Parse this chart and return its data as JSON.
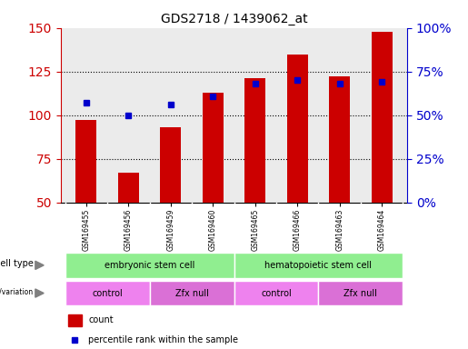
{
  "title": "GDS2718 / 1439062_at",
  "samples": [
    "GSM169455",
    "GSM169456",
    "GSM169459",
    "GSM169460",
    "GSM169465",
    "GSM169466",
    "GSM169463",
    "GSM169464"
  ],
  "counts": [
    97,
    67,
    93,
    113,
    121,
    135,
    122,
    148
  ],
  "percentile_ranks": [
    57,
    50,
    56,
    61,
    68,
    70,
    68,
    69
  ],
  "ylim_left": [
    50,
    150
  ],
  "ylim_right": [
    0,
    100
  ],
  "yticks_left": [
    50,
    75,
    100,
    125,
    150
  ],
  "yticks_right": [
    0,
    25,
    50,
    75,
    100
  ],
  "bar_color": "#cc0000",
  "dot_color": "#0000cc",
  "grid_color": "#000000",
  "cell_type_groups": [
    {
      "label": "embryonic stem cell",
      "start": 0,
      "end": 3,
      "color": "#90ee90"
    },
    {
      "label": "hematopoietic stem cell",
      "start": 4,
      "end": 7,
      "color": "#90ee90"
    }
  ],
  "genotype_groups": [
    {
      "label": "control",
      "start": 0,
      "end": 1,
      "color": "#ee82ee"
    },
    {
      "label": "Zfx null",
      "start": 2,
      "end": 3,
      "color": "#da70d6"
    },
    {
      "label": "control",
      "start": 4,
      "end": 5,
      "color": "#ee82ee"
    },
    {
      "label": "Zfx null",
      "start": 6,
      "end": 7,
      "color": "#da70d6"
    }
  ],
  "legend_count_color": "#cc0000",
  "legend_pct_color": "#0000cc",
  "legend_count_label": "count",
  "legend_pct_label": "percentile rank within the sample",
  "tick_label_color_left": "#cc0000",
  "tick_label_color_right": "#0000cc",
  "background_plot": "#ebebeb",
  "background_fig": "#ffffff"
}
